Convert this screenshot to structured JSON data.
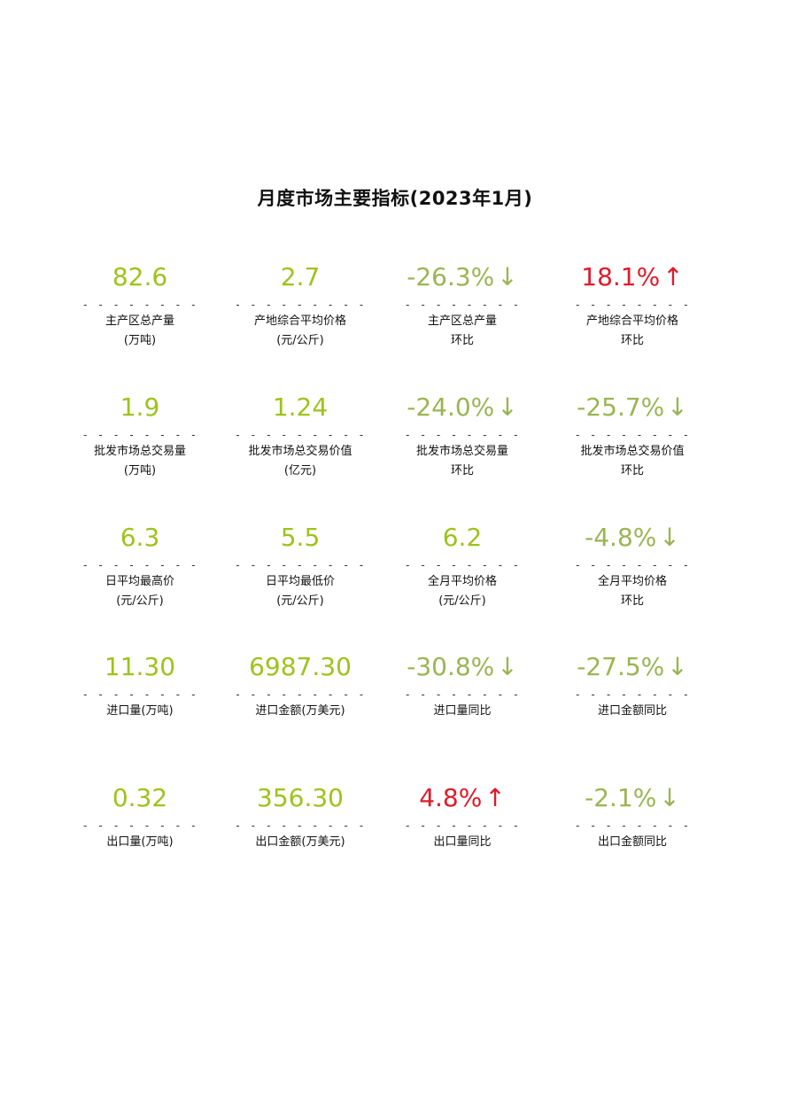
{
  "title": "月度市场主要指标(2023年1月)",
  "colors": {
    "value_green": "#9dc31a",
    "change_down": "#9ab552",
    "change_up": "#e01a2a"
  },
  "separator": "- - - - - - - -",
  "separator_long": "- - - - - - - - -",
  "rows": [
    {
      "cells": [
        {
          "value": "82.6",
          "arrow": "",
          "label1": "主产区总产量",
          "label2": "(万吨)"
        },
        {
          "value": "2.7",
          "arrow": "",
          "label1": "产地综合平均价格",
          "label2": "(元/公斤)"
        },
        {
          "value": "-26.3%",
          "arrow": "↓",
          "label1": "主产区总产量",
          "label2": "环比"
        },
        {
          "value": "18.1%",
          "arrow": "↑",
          "label1": "产地综合平均价格",
          "label2": "环比"
        }
      ]
    },
    {
      "cells": [
        {
          "value": "1.9",
          "arrow": "",
          "label1": "批发市场总交易量",
          "label2": "(万吨)"
        },
        {
          "value": "1.24",
          "arrow": "",
          "label1": "批发市场总交易价值",
          "label2": "(亿元)"
        },
        {
          "value": "-24.0%",
          "arrow": "↓",
          "label1": "批发市场总交易量",
          "label2": "环比"
        },
        {
          "value": "-25.7%",
          "arrow": "↓",
          "label1": "批发市场总交易价值",
          "label2": "环比"
        }
      ]
    },
    {
      "cells": [
        {
          "value": "6.3",
          "arrow": "",
          "label1": "日平均最高价",
          "label2": "(元/公斤)"
        },
        {
          "value": "5.5",
          "arrow": "",
          "label1": "日平均最低价",
          "label2": "(元/公斤)"
        },
        {
          "value": "6.2",
          "arrow": "",
          "label1": "全月平均价格",
          "label2": "(元/公斤)"
        },
        {
          "value": "-4.8%",
          "arrow": "↓",
          "label1": "全月平均价格",
          "label2": "环比"
        }
      ]
    },
    {
      "cells": [
        {
          "value": "11.30",
          "arrow": "",
          "label1": "进口量(万吨)",
          "label2": ""
        },
        {
          "value": "6987.30",
          "arrow": "",
          "label1": "进口金额(万美元)",
          "label2": ""
        },
        {
          "value": "-30.8%",
          "arrow": "↓",
          "label1": "进口量同比",
          "label2": ""
        },
        {
          "value": "-27.5%",
          "arrow": "↓",
          "label1": "进口金额同比",
          "label2": ""
        }
      ]
    },
    {
      "cells": [
        {
          "value": "0.32",
          "arrow": "",
          "label1": "出口量(万吨)",
          "label2": ""
        },
        {
          "value": "356.30",
          "arrow": "",
          "label1": "出口金额(万美元)",
          "label2": ""
        },
        {
          "value": "4.8%",
          "arrow": "↑",
          "label1": "出口量同比",
          "label2": ""
        },
        {
          "value": "-2.1%",
          "arrow": "↓",
          "label1": "出口金额同比",
          "label2": ""
        }
      ]
    }
  ]
}
